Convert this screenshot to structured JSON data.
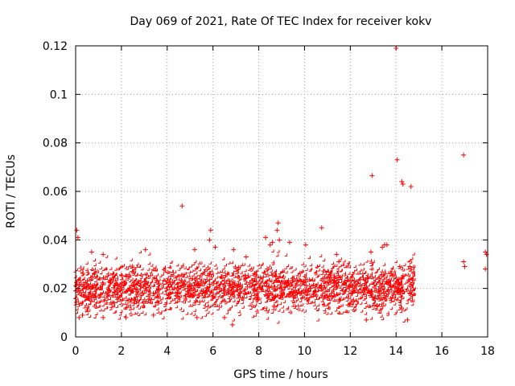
{
  "chart_data": {
    "type": "scatter",
    "title": "Day 069 of 2021, Rate Of TEC Index for receiver kokv",
    "xlabel": "GPS time / hours",
    "ylabel": "ROTI / TECUs",
    "xlim": [
      0,
      18
    ],
    "ylim": [
      0,
      0.12
    ],
    "xticks": [
      0,
      2,
      4,
      6,
      8,
      10,
      12,
      14,
      16,
      18
    ],
    "xtick_labels": [
      "0",
      "2",
      "4",
      "6",
      "8",
      "10",
      "12",
      "14",
      "16",
      "18"
    ],
    "yticks": [
      0,
      0.02,
      0.04,
      0.06,
      0.08,
      0.1,
      0.12
    ],
    "ytick_labels": [
      "0",
      "0.02",
      "0.04",
      "0.06",
      "0.08",
      "0.1",
      "0.12"
    ],
    "grid": true,
    "marker": "+",
    "color": "#ff0000",
    "dense_band": {
      "x_start": 0.0,
      "x_end": 14.85,
      "y_typical_min": 0.01,
      "y_typical_max": 0.03,
      "y_mean": 0.02
    },
    "points": [
      {
        "x": 0.05,
        "y": 0.044
      },
      {
        "x": 0.1,
        "y": 0.041
      },
      {
        "x": 0.15,
        "y": 0.008
      },
      {
        "x": 0.3,
        "y": 0.009
      },
      {
        "x": 0.7,
        "y": 0.035
      },
      {
        "x": 1.2,
        "y": 0.034
      },
      {
        "x": 1.2,
        "y": 0.008
      },
      {
        "x": 2.2,
        "y": 0.008
      },
      {
        "x": 3.05,
        "y": 0.036
      },
      {
        "x": 3.4,
        "y": 0.009
      },
      {
        "x": 4.65,
        "y": 0.054
      },
      {
        "x": 5.2,
        "y": 0.036
      },
      {
        "x": 5.3,
        "y": 0.008
      },
      {
        "x": 5.9,
        "y": 0.044
      },
      {
        "x": 5.85,
        "y": 0.04
      },
      {
        "x": 6.1,
        "y": 0.037
      },
      {
        "x": 6.5,
        "y": 0.008
      },
      {
        "x": 6.85,
        "y": 0.005
      },
      {
        "x": 6.9,
        "y": 0.036
      },
      {
        "x": 7.45,
        "y": 0.033
      },
      {
        "x": 8.3,
        "y": 0.041
      },
      {
        "x": 8.5,
        "y": 0.038
      },
      {
        "x": 8.6,
        "y": 0.039
      },
      {
        "x": 8.8,
        "y": 0.044
      },
      {
        "x": 8.85,
        "y": 0.047
      },
      {
        "x": 8.9,
        "y": 0.04
      },
      {
        "x": 9.35,
        "y": 0.039
      },
      {
        "x": 10.05,
        "y": 0.038
      },
      {
        "x": 10.75,
        "y": 0.045
      },
      {
        "x": 11.4,
        "y": 0.034
      },
      {
        "x": 11.5,
        "y": 0.031
      },
      {
        "x": 12.7,
        "y": 0.007
      },
      {
        "x": 12.9,
        "y": 0.035
      },
      {
        "x": 13.4,
        "y": 0.037
      },
      {
        "x": 13.5,
        "y": 0.038
      },
      {
        "x": 13.6,
        "y": 0.038
      },
      {
        "x": 14.5,
        "y": 0.007
      },
      {
        "x": 14.6,
        "y": 0.029
      },
      {
        "x": 12.95,
        "y": 0.0665
      },
      {
        "x": 14.0,
        "y": 0.119
      },
      {
        "x": 14.05,
        "y": 0.073
      },
      {
        "x": 14.25,
        "y": 0.064
      },
      {
        "x": 14.3,
        "y": 0.063
      },
      {
        "x": 14.65,
        "y": 0.062
      },
      {
        "x": 16.95,
        "y": 0.075
      },
      {
        "x": 16.95,
        "y": 0.031
      },
      {
        "x": 17.0,
        "y": 0.029
      },
      {
        "x": 17.9,
        "y": 0.035
      },
      {
        "x": 17.95,
        "y": 0.034
      },
      {
        "x": 17.9,
        "y": 0.028
      }
    ]
  }
}
